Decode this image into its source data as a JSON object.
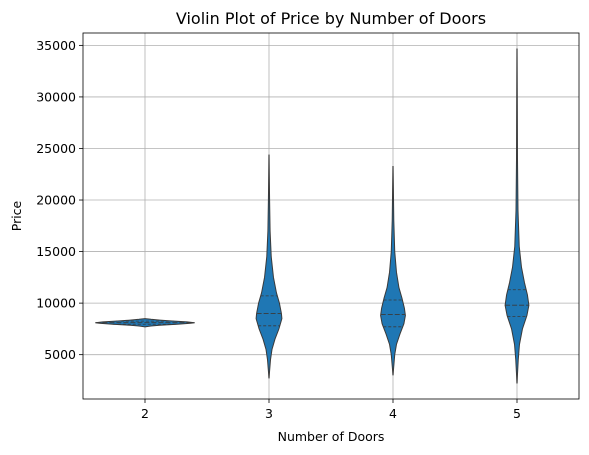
{
  "chart_data": {
    "type": "violin",
    "title": "Violin Plot of Price by Number of Doors",
    "xlabel": "Number of Doors",
    "ylabel": "Price",
    "categories": [
      "2",
      "3",
      "4",
      "5"
    ],
    "ylim": [
      700,
      36200
    ],
    "yticks": [
      "5000",
      "10000",
      "15000",
      "20000",
      "25000",
      "30000",
      "35000"
    ],
    "grid": true,
    "color": "#1f77b4",
    "violins": [
      {
        "category": "2",
        "min": 7700,
        "max": 8500,
        "q1": 7950,
        "median": 8100,
        "q3": 8250,
        "density": [
          {
            "y": 7700,
            "w": 0.0
          },
          {
            "y": 7780,
            "w": 0.12
          },
          {
            "y": 7850,
            "w": 0.3
          },
          {
            "y": 7950,
            "w": 0.65
          },
          {
            "y": 8050,
            "w": 0.92
          },
          {
            "y": 8100,
            "w": 1.0
          },
          {
            "y": 8180,
            "w": 0.85
          },
          {
            "y": 8260,
            "w": 0.55
          },
          {
            "y": 8350,
            "w": 0.3
          },
          {
            "y": 8430,
            "w": 0.12
          },
          {
            "y": 8500,
            "w": 0.0
          }
        ]
      },
      {
        "category": "3",
        "min": 2700,
        "max": 24400,
        "q1": 7800,
        "median": 9000,
        "q3": 10700,
        "density": [
          {
            "y": 2700,
            "w": 0.0
          },
          {
            "y": 4500,
            "w": 0.03
          },
          {
            "y": 5500,
            "w": 0.06
          },
          {
            "y": 6500,
            "w": 0.12
          },
          {
            "y": 7500,
            "w": 0.2
          },
          {
            "y": 8500,
            "w": 0.26
          },
          {
            "y": 9000,
            "w": 0.25
          },
          {
            "y": 10000,
            "w": 0.21
          },
          {
            "y": 11000,
            "w": 0.15
          },
          {
            "y": 12500,
            "w": 0.09
          },
          {
            "y": 14500,
            "w": 0.045
          },
          {
            "y": 17000,
            "w": 0.022
          },
          {
            "y": 20000,
            "w": 0.012
          },
          {
            "y": 24400,
            "w": 0.0
          }
        ]
      },
      {
        "category": "4",
        "min": 3000,
        "max": 23300,
        "q1": 7700,
        "median": 8900,
        "q3": 10300,
        "density": [
          {
            "y": 3000,
            "w": 0.0
          },
          {
            "y": 5000,
            "w": 0.035
          },
          {
            "y": 6000,
            "w": 0.07
          },
          {
            "y": 7000,
            "w": 0.14
          },
          {
            "y": 8000,
            "w": 0.22
          },
          {
            "y": 8800,
            "w": 0.25
          },
          {
            "y": 9500,
            "w": 0.23
          },
          {
            "y": 10500,
            "w": 0.18
          },
          {
            "y": 11500,
            "w": 0.12
          },
          {
            "y": 13000,
            "w": 0.07
          },
          {
            "y": 15000,
            "w": 0.035
          },
          {
            "y": 18000,
            "w": 0.016
          },
          {
            "y": 21000,
            "w": 0.008
          },
          {
            "y": 23300,
            "w": 0.0
          }
        ]
      },
      {
        "category": "5",
        "min": 2200,
        "max": 34700,
        "q1": 8700,
        "median": 9800,
        "q3": 11300,
        "density": [
          {
            "y": 2200,
            "w": 0.0
          },
          {
            "y": 4500,
            "w": 0.025
          },
          {
            "y": 6000,
            "w": 0.05
          },
          {
            "y": 7500,
            "w": 0.11
          },
          {
            "y": 8800,
            "w": 0.2
          },
          {
            "y": 9800,
            "w": 0.24
          },
          {
            "y": 10800,
            "w": 0.21
          },
          {
            "y": 12000,
            "w": 0.15
          },
          {
            "y": 13500,
            "w": 0.09
          },
          {
            "y": 15500,
            "w": 0.045
          },
          {
            "y": 19000,
            "w": 0.02
          },
          {
            "y": 24000,
            "w": 0.01
          },
          {
            "y": 29000,
            "w": 0.006
          },
          {
            "y": 34700,
            "w": 0.0
          }
        ]
      }
    ]
  }
}
